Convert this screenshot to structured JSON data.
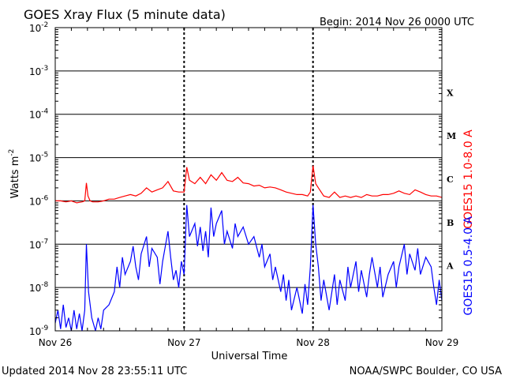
{
  "title": "GOES Xray Flux (5 minute data)",
  "begin": "Begin:  2014 Nov 26 0000 UTC",
  "updated": "Updated 2014 Nov 28 23:55:11 UTC",
  "credit": "NOAA/SWPC Boulder, CO USA",
  "chart_data": {
    "type": "line",
    "title": "GOES Xray Flux (5 minute data)",
    "xlabel": "Universal Time",
    "ylabel": "Watts m-2",
    "yscale": "log",
    "ylim": [
      1e-09,
      0.01
    ],
    "xlim": [
      0,
      72
    ],
    "x_unit": "hours since 2014 Nov 26 0000 UTC",
    "x_ticks": [
      {
        "x": 0,
        "label": "Nov 26"
      },
      {
        "x": 24,
        "label": "Nov 27"
      },
      {
        "x": 48,
        "label": "Nov 28"
      },
      {
        "x": 72,
        "label": "Nov 29"
      }
    ],
    "y_ticks": [
      {
        "exp": -9
      },
      {
        "exp": -8
      },
      {
        "exp": -7
      },
      {
        "exp": -6
      },
      {
        "exp": -5
      },
      {
        "exp": -4
      },
      {
        "exp": -3
      },
      {
        "exp": -2
      }
    ],
    "flare_classes": [
      {
        "label": "A",
        "between": [
          -8,
          -7
        ]
      },
      {
        "label": "B",
        "between": [
          -7,
          -6
        ]
      },
      {
        "label": "C",
        "between": [
          -6,
          -5
        ]
      },
      {
        "label": "M",
        "between": [
          -5,
          -4
        ]
      },
      {
        "label": "X",
        "between": [
          -4,
          -3
        ]
      }
    ],
    "grid": "horizontal lines at each decade, dotted vertical lines at day boundaries",
    "series": [
      {
        "name": "GOES15 1.0-8.0 A",
        "color": "#ff0000",
        "points": [
          [
            0,
            1e-06
          ],
          [
            1,
            1e-06
          ],
          [
            2,
            9.5e-07
          ],
          [
            3,
            1e-06
          ],
          [
            4,
            9e-07
          ],
          [
            5,
            9.5e-07
          ],
          [
            5.5,
            1e-06
          ],
          [
            5.8,
            2.6e-06
          ],
          [
            6.1,
            1.3e-06
          ],
          [
            6.5,
            1e-06
          ],
          [
            7,
            9.5e-07
          ],
          [
            8,
            9.5e-07
          ],
          [
            9,
            1e-06
          ],
          [
            10,
            1.1e-06
          ],
          [
            11,
            1.1e-06
          ],
          [
            12,
            1.2e-06
          ],
          [
            13,
            1.3e-06
          ],
          [
            14,
            1.4e-06
          ],
          [
            15,
            1.3e-06
          ],
          [
            16,
            1.5e-06
          ],
          [
            17,
            2e-06
          ],
          [
            18,
            1.6e-06
          ],
          [
            19,
            1.8e-06
          ],
          [
            20,
            2e-06
          ],
          [
            21,
            2.8e-06
          ],
          [
            22,
            1.7e-06
          ],
          [
            23,
            1.6e-06
          ],
          [
            24,
            1.6e-06
          ],
          [
            24.5,
            6e-06
          ],
          [
            25,
            3e-06
          ],
          [
            26,
            2.5e-06
          ],
          [
            27,
            3.5e-06
          ],
          [
            28,
            2.5e-06
          ],
          [
            29,
            4e-06
          ],
          [
            30,
            3e-06
          ],
          [
            31,
            4.5e-06
          ],
          [
            32,
            3e-06
          ],
          [
            33,
            2.8e-06
          ],
          [
            34,
            3.5e-06
          ],
          [
            35,
            2.6e-06
          ],
          [
            36,
            2.5e-06
          ],
          [
            37,
            2.2e-06
          ],
          [
            38,
            2.3e-06
          ],
          [
            39,
            2e-06
          ],
          [
            40,
            2.1e-06
          ],
          [
            41,
            2e-06
          ],
          [
            42,
            1.8e-06
          ],
          [
            43,
            1.6e-06
          ],
          [
            44,
            1.5e-06
          ],
          [
            45,
            1.4e-06
          ],
          [
            46,
            1.4e-06
          ],
          [
            47,
            1.3e-06
          ],
          [
            47.5,
            1.6e-06
          ],
          [
            48,
            6.5e-06
          ],
          [
            48.5,
            2.5e-06
          ],
          [
            49,
            2e-06
          ],
          [
            50,
            1.3e-06
          ],
          [
            51,
            1.2e-06
          ],
          [
            52,
            1.6e-06
          ],
          [
            53,
            1.2e-06
          ],
          [
            54,
            1.3e-06
          ],
          [
            55,
            1.2e-06
          ],
          [
            56,
            1.3e-06
          ],
          [
            57,
            1.2e-06
          ],
          [
            58,
            1.4e-06
          ],
          [
            59,
            1.3e-06
          ],
          [
            60,
            1.3e-06
          ],
          [
            61,
            1.4e-06
          ],
          [
            62,
            1.4e-06
          ],
          [
            63,
            1.5e-06
          ],
          [
            64,
            1.7e-06
          ],
          [
            65,
            1.5e-06
          ],
          [
            66,
            1.4e-06
          ],
          [
            67,
            1.8e-06
          ],
          [
            68,
            1.6e-06
          ],
          [
            69,
            1.4e-06
          ],
          [
            70,
            1.3e-06
          ],
          [
            71,
            1.3e-06
          ],
          [
            72,
            1.2e-06
          ]
        ]
      },
      {
        "name": "GOES15 0.5-4.0 A",
        "color": "#0000ff",
        "points": [
          [
            0,
            1.5e-09
          ],
          [
            0.5,
            3e-09
          ],
          [
            1,
            1.1e-09
          ],
          [
            1.5,
            4e-09
          ],
          [
            2,
            1.2e-09
          ],
          [
            2.5,
            2e-09
          ],
          [
            3,
            1e-09
          ],
          [
            3.5,
            3e-09
          ],
          [
            4,
            1.1e-09
          ],
          [
            4.5,
            2.5e-09
          ],
          [
            5,
            1e-09
          ],
          [
            5.5,
            3e-09
          ],
          [
            5.8,
            1e-07
          ],
          [
            6.2,
            8e-09
          ],
          [
            6.8,
            2e-09
          ],
          [
            7.5,
            1e-09
          ],
          [
            8,
            2e-09
          ],
          [
            8.5,
            1.1e-09
          ],
          [
            9,
            3e-09
          ],
          [
            10,
            4e-09
          ],
          [
            11,
            8e-09
          ],
          [
            11.5,
            3e-08
          ],
          [
            12,
            1e-08
          ],
          [
            12.5,
            5e-08
          ],
          [
            13,
            2e-08
          ],
          [
            14,
            4e-08
          ],
          [
            14.5,
            9e-08
          ],
          [
            15,
            3e-08
          ],
          [
            15.5,
            1.5e-08
          ],
          [
            16,
            6e-08
          ],
          [
            17,
            1.5e-07
          ],
          [
            17.5,
            3e-08
          ],
          [
            18,
            8e-08
          ],
          [
            19,
            5e-08
          ],
          [
            19.5,
            1.2e-08
          ],
          [
            20,
            4e-08
          ],
          [
            21,
            2e-07
          ],
          [
            21.5,
            5e-08
          ],
          [
            22,
            1.5e-08
          ],
          [
            22.5,
            2.5e-08
          ],
          [
            23,
            1e-08
          ],
          [
            23.5,
            4e-08
          ],
          [
            24,
            2e-08
          ],
          [
            24.5,
            8e-07
          ],
          [
            25,
            1.5e-07
          ],
          [
            26,
            3e-07
          ],
          [
            26.5,
            9e-08
          ],
          [
            27,
            2.5e-07
          ],
          [
            27.5,
            7e-08
          ],
          [
            28,
            2e-07
          ],
          [
            28.5,
            5e-08
          ],
          [
            29,
            7e-07
          ],
          [
            29.5,
            1.5e-07
          ],
          [
            30,
            3e-07
          ],
          [
            31,
            6e-07
          ],
          [
            31.5,
            1e-07
          ],
          [
            32,
            2e-07
          ],
          [
            33,
            8e-08
          ],
          [
            33.5,
            3e-07
          ],
          [
            34,
            1.5e-07
          ],
          [
            35,
            2.5e-07
          ],
          [
            36,
            1e-07
          ],
          [
            37,
            1.5e-07
          ],
          [
            38,
            5e-08
          ],
          [
            38.5,
            1e-07
          ],
          [
            39,
            3e-08
          ],
          [
            40,
            6e-08
          ],
          [
            40.5,
            1.5e-08
          ],
          [
            41,
            3e-08
          ],
          [
            42,
            8e-09
          ],
          [
            42.5,
            2e-08
          ],
          [
            43,
            5e-09
          ],
          [
            43.5,
            1.5e-08
          ],
          [
            44,
            3e-09
          ],
          [
            45,
            1e-08
          ],
          [
            46,
            2.5e-09
          ],
          [
            46.5,
            1.2e-08
          ],
          [
            47,
            4e-09
          ],
          [
            47.5,
            3e-08
          ],
          [
            48,
            8e-07
          ],
          [
            48.5,
            1e-07
          ],
          [
            49,
            3e-08
          ],
          [
            49.5,
            5e-09
          ],
          [
            50,
            1.5e-08
          ],
          [
            51,
            3e-09
          ],
          [
            52,
            2e-08
          ],
          [
            52.5,
            4e-09
          ],
          [
            53,
            1.5e-08
          ],
          [
            54,
            5e-09
          ],
          [
            54.5,
            3e-08
          ],
          [
            55,
            1e-08
          ],
          [
            56,
            4e-08
          ],
          [
            56.5,
            8e-09
          ],
          [
            57,
            2.5e-08
          ],
          [
            58,
            6e-09
          ],
          [
            58.5,
            2e-08
          ],
          [
            59,
            5e-08
          ],
          [
            60,
            1e-08
          ],
          [
            60.5,
            3e-08
          ],
          [
            61,
            6e-09
          ],
          [
            62,
            2e-08
          ],
          [
            63,
            4e-08
          ],
          [
            63.5,
            1e-08
          ],
          [
            64,
            3e-08
          ],
          [
            65,
            1e-07
          ],
          [
            65.5,
            2e-08
          ],
          [
            66,
            6e-08
          ],
          [
            67,
            2.5e-08
          ],
          [
            67.5,
            8e-08
          ],
          [
            68,
            2e-08
          ],
          [
            69,
            5e-08
          ],
          [
            70,
            3e-08
          ],
          [
            70.5,
            1e-08
          ],
          [
            71,
            4e-09
          ],
          [
            71.5,
            1.5e-08
          ],
          [
            72,
            5e-09
          ]
        ]
      }
    ]
  }
}
